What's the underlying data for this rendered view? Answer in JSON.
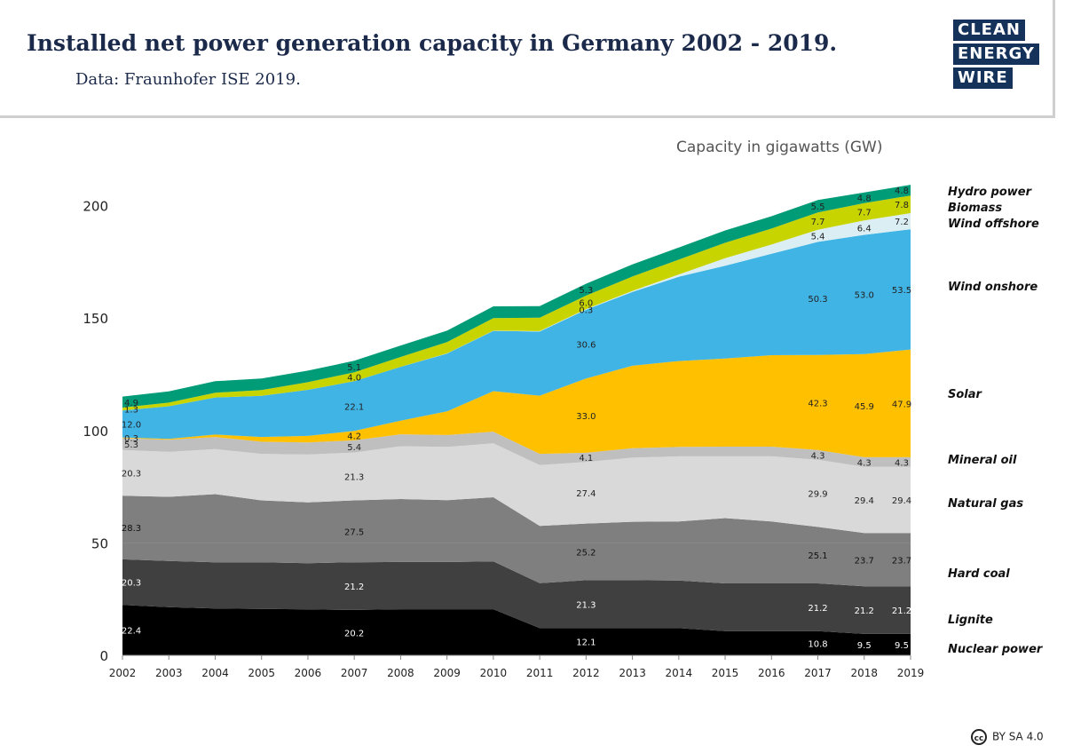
{
  "header": {
    "title": "Installed net power generation capacity in Germany 2002 - 2019.",
    "subtitle": "Data: Fraunhofer ISE 2019."
  },
  "logo": {
    "line1": "CLEAN",
    "line2": "ENERGY",
    "line3": "WIRE"
  },
  "license": "BY SA 4.0",
  "colors": {
    "nuclear": "#000000",
    "lignite": "#404040",
    "hard_coal": "#7f7f7f",
    "natural_gas": "#d9d9d9",
    "mineral_oil": "#bfbfbf",
    "solar": "#ffc000",
    "wind_onshore": "#41b4e6",
    "wind_offshore": "#dbeef4",
    "biomass": "#c8d400",
    "hydro": "#009b77"
  },
  "chart_data": {
    "type": "area",
    "stacked": true,
    "title": "Capacity in gigawatts (GW)",
    "xlabel": "",
    "ylabel": "",
    "x": [
      2002,
      2003,
      2004,
      2005,
      2006,
      2007,
      2008,
      2009,
      2010,
      2011,
      2012,
      2013,
      2014,
      2015,
      2016,
      2017,
      2018,
      2019
    ],
    "ylim": [
      0,
      210
    ],
    "yticks": [
      0,
      50,
      100,
      150,
      200
    ],
    "grid": false,
    "legend": "right",
    "series": [
      {
        "name": "Nuclear power",
        "color": "#000000",
        "values": [
          22.4,
          21.4,
          20.8,
          20.6,
          20.4,
          20.2,
          20.5,
          20.5,
          20.5,
          12.1,
          12.1,
          12.1,
          12.1,
          10.8,
          10.8,
          10.8,
          9.5,
          9.5
        ]
      },
      {
        "name": "Lignite",
        "color": "#404040",
        "values": [
          20.3,
          20.6,
          20.6,
          20.8,
          20.6,
          21.2,
          21.0,
          21.0,
          21.3,
          20.0,
          21.3,
          21.3,
          21.2,
          21.2,
          21.2,
          21.2,
          21.2,
          21.2
        ]
      },
      {
        "name": "Hard coal",
        "color": "#7f7f7f",
        "values": [
          28.3,
          28.5,
          30.3,
          27.5,
          27.0,
          27.5,
          28.0,
          27.5,
          28.5,
          25.5,
          25.2,
          26.0,
          26.2,
          29.0,
          27.5,
          25.1,
          23.7,
          23.7
        ]
      },
      {
        "name": "Natural gas",
        "color": "#d9d9d9",
        "values": [
          20.3,
          20.0,
          20.0,
          20.7,
          21.3,
          21.3,
          23.5,
          23.7,
          24.0,
          27.0,
          27.4,
          28.5,
          29.0,
          27.5,
          29.0,
          29.9,
          29.4,
          29.4
        ]
      },
      {
        "name": "Mineral oil",
        "color": "#bfbfbf",
        "values": [
          5.3,
          5.4,
          5.4,
          5.4,
          5.4,
          5.4,
          5.3,
          5.3,
          5.2,
          5.0,
          4.1,
          4.2,
          4.2,
          4.3,
          4.3,
          4.3,
          4.3,
          4.3
        ]
      },
      {
        "name": "Solar",
        "color": "#ffc000",
        "values": [
          0.3,
          0.4,
          1.1,
          2.1,
          2.9,
          4.2,
          6.1,
          10.5,
          18.0,
          25.9,
          33.0,
          36.7,
          38.2,
          39.2,
          40.7,
          42.3,
          45.9,
          47.9
        ]
      },
      {
        "name": "Wind onshore",
        "color": "#41b4e6",
        "values": [
          12.0,
          14.5,
          16.5,
          18.3,
          20.5,
          22.1,
          23.9,
          25.7,
          26.8,
          28.5,
          30.6,
          32.8,
          37.5,
          41.3,
          45.1,
          50.3,
          53.0,
          53.5
        ]
      },
      {
        "name": "Wind offshore",
        "color": "#dbeef4",
        "values": [
          0.0,
          0.0,
          0.0,
          0.0,
          0.0,
          0.0,
          0.0,
          0.1,
          0.1,
          0.2,
          0.3,
          0.5,
          1.0,
          3.3,
          4.1,
          5.4,
          6.4,
          7.2
        ]
      },
      {
        "name": "Biomass",
        "color": "#c8d400",
        "values": [
          1.3,
          1.6,
          2.1,
          2.6,
          3.4,
          4.0,
          4.4,
          5.0,
          5.6,
          6.0,
          6.0,
          6.4,
          6.6,
          6.9,
          7.1,
          7.7,
          7.7,
          7.8
        ]
      },
      {
        "name": "Hydro power",
        "color": "#009b77",
        "values": [
          4.9,
          5.0,
          5.1,
          5.1,
          5.1,
          5.1,
          5.1,
          5.1,
          5.2,
          5.1,
          5.3,
          5.4,
          5.4,
          5.5,
          5.5,
          5.5,
          4.8,
          4.8
        ]
      }
    ],
    "data_labels": [
      {
        "series": "Nuclear power",
        "x": 2002,
        "text": "22.4"
      },
      {
        "series": "Nuclear power",
        "x": 2007,
        "text": "20.2"
      },
      {
        "series": "Nuclear power",
        "x": 2012,
        "text": "12.1"
      },
      {
        "series": "Nuclear power",
        "x": 2017,
        "text": "10.8"
      },
      {
        "series": "Nuclear power",
        "x": 2018,
        "text": "9.5"
      },
      {
        "series": "Nuclear power",
        "x": 2019,
        "text": "9.5"
      },
      {
        "series": "Lignite",
        "x": 2002,
        "text": "20.3"
      },
      {
        "series": "Lignite",
        "x": 2007,
        "text": "21.2"
      },
      {
        "series": "Lignite",
        "x": 2012,
        "text": "21.3"
      },
      {
        "series": "Lignite",
        "x": 2017,
        "text": "21.2"
      },
      {
        "series": "Lignite",
        "x": 2018,
        "text": "21.2"
      },
      {
        "series": "Lignite",
        "x": 2019,
        "text": "21.2"
      },
      {
        "series": "Hard coal",
        "x": 2002,
        "text": "28.3"
      },
      {
        "series": "Hard coal",
        "x": 2007,
        "text": "27.5"
      },
      {
        "series": "Hard coal",
        "x": 2012,
        "text": "25.2"
      },
      {
        "series": "Hard coal",
        "x": 2017,
        "text": "25.1"
      },
      {
        "series": "Hard coal",
        "x": 2018,
        "text": "23.7"
      },
      {
        "series": "Hard coal",
        "x": 2019,
        "text": "23.7"
      },
      {
        "series": "Natural gas",
        "x": 2002,
        "text": "20.3"
      },
      {
        "series": "Natural gas",
        "x": 2007,
        "text": "21.3"
      },
      {
        "series": "Natural gas",
        "x": 2012,
        "text": "27.4"
      },
      {
        "series": "Natural gas",
        "x": 2017,
        "text": "29.9"
      },
      {
        "series": "Natural gas",
        "x": 2018,
        "text": "29.4"
      },
      {
        "series": "Natural gas",
        "x": 2019,
        "text": "29.4"
      },
      {
        "series": "Mineral oil",
        "x": 2002,
        "text": "5.3"
      },
      {
        "series": "Mineral oil",
        "x": 2007,
        "text": "5.4"
      },
      {
        "series": "Mineral oil",
        "x": 2012,
        "text": "4.1"
      },
      {
        "series": "Mineral oil",
        "x": 2017,
        "text": "4.3"
      },
      {
        "series": "Mineral oil",
        "x": 2018,
        "text": "4.3"
      },
      {
        "series": "Mineral oil",
        "x": 2019,
        "text": "4.3"
      },
      {
        "series": "Solar",
        "x": 2002,
        "text": "0.3"
      },
      {
        "series": "Solar",
        "x": 2007,
        "text": "4.2"
      },
      {
        "series": "Solar",
        "x": 2012,
        "text": "33.0"
      },
      {
        "series": "Solar",
        "x": 2017,
        "text": "42.3"
      },
      {
        "series": "Solar",
        "x": 2018,
        "text": "45.9"
      },
      {
        "series": "Solar",
        "x": 2019,
        "text": "47.9"
      },
      {
        "series": "Wind onshore",
        "x": 2002,
        "text": "12.0"
      },
      {
        "series": "Wind onshore",
        "x": 2007,
        "text": "22.1"
      },
      {
        "series": "Wind onshore",
        "x": 2012,
        "text": "30.6"
      },
      {
        "series": "Wind onshore",
        "x": 2017,
        "text": "50.3"
      },
      {
        "series": "Wind onshore",
        "x": 2018,
        "text": "53.0"
      },
      {
        "series": "Wind onshore",
        "x": 2019,
        "text": "53.5"
      },
      {
        "series": "Wind offshore",
        "x": 2012,
        "text": "0.3"
      },
      {
        "series": "Wind offshore",
        "x": 2017,
        "text": "5.4"
      },
      {
        "series": "Wind offshore",
        "x": 2018,
        "text": "6.4"
      },
      {
        "series": "Wind offshore",
        "x": 2019,
        "text": "7.2"
      },
      {
        "series": "Biomass",
        "x": 2002,
        "text": "1.3"
      },
      {
        "series": "Biomass",
        "x": 2007,
        "text": "4.0"
      },
      {
        "series": "Biomass",
        "x": 2012,
        "text": "6.0"
      },
      {
        "series": "Biomass",
        "x": 2017,
        "text": "7.7"
      },
      {
        "series": "Biomass",
        "x": 2018,
        "text": "7.7"
      },
      {
        "series": "Biomass",
        "x": 2019,
        "text": "7.8"
      },
      {
        "series": "Hydro power",
        "x": 2002,
        "text": "4.9"
      },
      {
        "series": "Hydro power",
        "x": 2007,
        "text": "5.1"
      },
      {
        "series": "Hydro power",
        "x": 2012,
        "text": "5.3"
      },
      {
        "series": "Hydro power",
        "x": 2017,
        "text": "5.5"
      },
      {
        "series": "Hydro power",
        "x": 2018,
        "text": "4.8"
      },
      {
        "series": "Hydro power",
        "x": 2019,
        "text": "4.8"
      }
    ]
  }
}
